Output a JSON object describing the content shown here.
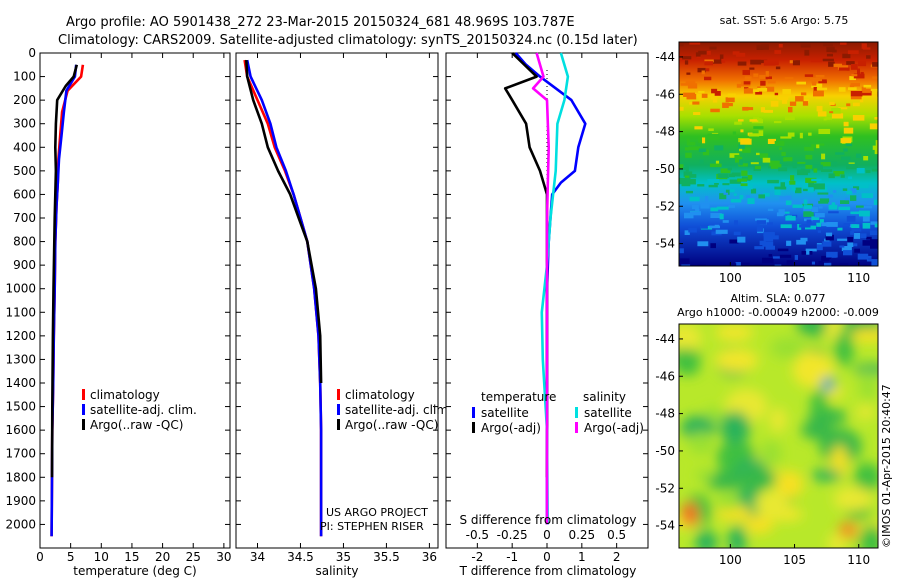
{
  "header": {
    "line1": "Argo profile: AO 5901438_272 23-Mar-2015 20150324_681 48.969S 103.787E",
    "line2": "Climatology: CARS2009. Satellite-adjusted climatology: synTS_20150324.nc (0.15d later)"
  },
  "depth_ticks": [
    "0",
    "100",
    "200",
    "300",
    "400",
    "500",
    "600",
    "700",
    "800",
    "900",
    "1000",
    "1100",
    "1200",
    "1300",
    "1400",
    "1500",
    "1600",
    "1700",
    "1800",
    "1900",
    "2000"
  ],
  "credits": {
    "project": "US ARGO PROJECT",
    "pi": "PI: STEPHEN RISER",
    "imos": "©IMOS 01-Apr-2015 20:40:47"
  },
  "colors": {
    "climatology": "#ff0000",
    "satellite": "#0000ff",
    "argo": "#000000",
    "sal_satellite": "#00e0e0",
    "sal_argo": "#ff00ff"
  },
  "chart_data": [
    {
      "type": "line",
      "xlabel": "temperature (deg C)",
      "ylabel": "",
      "xlim": [
        0,
        31
      ],
      "ylim": [
        2100,
        0
      ],
      "xticks": [
        "0",
        "5",
        "10",
        "15",
        "20",
        "25",
        "30"
      ],
      "legend": [
        {
          "label": "climatology",
          "color": "#ff0000"
        },
        {
          "label": "satellite-adj. clim.",
          "color": "#0000ff"
        },
        {
          "label": "Argo(..raw -QC)",
          "color": "#000000"
        }
      ],
      "series": [
        {
          "name": "climatology",
          "color": "#ff0000",
          "x": [
            7.0,
            6.7,
            4.5,
            3.6,
            3.3,
            3.0,
            2.9,
            2.7,
            2.5,
            2.4,
            2.25,
            2.15,
            2.0,
            1.95,
            1.9
          ],
          "y": [
            50,
            100,
            160,
            250,
            350,
            450,
            550,
            650,
            800,
            1000,
            1200,
            1400,
            1600,
            1800,
            2050
          ]
        },
        {
          "name": "satellite-adj. clim.",
          "color": "#0000ff",
          "x": [
            5.9,
            5.7,
            4.3,
            3.9,
            3.5,
            3.1,
            2.9,
            2.7,
            2.5,
            2.4,
            2.25,
            2.15,
            2.0,
            1.95,
            1.9
          ],
          "y": [
            50,
            100,
            160,
            250,
            350,
            450,
            550,
            650,
            800,
            1000,
            1200,
            1400,
            1600,
            1800,
            2050
          ]
        },
        {
          "name": "Argo(..raw -QC)",
          "color": "#000000",
          "x": [
            6.0,
            5.5,
            4.2,
            2.8,
            2.6,
            2.5,
            2.6,
            2.5,
            2.4,
            2.3,
            2.2,
            2.1,
            2.0,
            1.95
          ],
          "y": [
            50,
            100,
            140,
            200,
            300,
            400,
            500,
            600,
            700,
            850,
            1000,
            1200,
            1500,
            1800
          ]
        }
      ]
    },
    {
      "type": "line",
      "xlabel": "salinity",
      "ylabel": "",
      "xlim": [
        33.75,
        36.1
      ],
      "ylim": [
        2100,
        0
      ],
      "xticks": [
        "34",
        "34.5",
        "35",
        "35.5",
        "36"
      ],
      "legend": [
        {
          "label": "climatology",
          "color": "#ff0000"
        },
        {
          "label": "satellite-adj. clim.",
          "color": "#0000ff"
        },
        {
          "label": "Argo(..raw -QC)",
          "color": "#000000"
        }
      ],
      "series": [
        {
          "name": "climatology",
          "color": "#ff0000",
          "x": [
            33.85,
            33.88,
            34.0,
            34.12,
            34.2,
            34.32,
            34.42,
            34.5,
            34.58,
            34.66,
            34.71,
            34.73,
            34.74,
            34.74
          ],
          "y": [
            30,
            100,
            200,
            300,
            400,
            500,
            600,
            700,
            800,
            1000,
            1200,
            1400,
            1600,
            2050
          ]
        },
        {
          "name": "satellite-adj. clim.",
          "color": "#0000ff",
          "x": [
            33.88,
            33.92,
            34.05,
            34.15,
            34.22,
            34.33,
            34.42,
            34.5,
            34.58,
            34.66,
            34.71,
            34.73,
            34.74,
            34.74
          ],
          "y": [
            30,
            100,
            200,
            300,
            400,
            500,
            600,
            700,
            800,
            1000,
            1200,
            1400,
            1600,
            2050
          ]
        },
        {
          "name": "Argo(..raw -QC)",
          "color": "#000000",
          "x": [
            33.87,
            33.88,
            33.95,
            34.05,
            34.12,
            34.24,
            34.38,
            34.48,
            34.58,
            34.68,
            34.73,
            34.74
          ],
          "y": [
            30,
            100,
            200,
            300,
            400,
            500,
            600,
            700,
            800,
            1000,
            1200,
            1400
          ]
        }
      ]
    },
    {
      "type": "line",
      "xlabel": "T difference from climatology",
      "xlabel_top": "S difference from climatology",
      "ylabel": "",
      "xlim": [
        -2.9,
        2.9
      ],
      "ylim": [
        2100,
        0
      ],
      "xticks": [
        "-2",
        "-1",
        "0",
        "1",
        "2"
      ],
      "xticks_top": [
        "-0.5",
        "-0.25",
        "0",
        "0.25",
        "0.5"
      ],
      "legend": [
        {
          "group": "temperature",
          "label": "satellite",
          "color": "#0000ff"
        },
        {
          "group": "temperature",
          "label": "Argo(-adj)",
          "color": "#000000"
        },
        {
          "group": "salinity",
          "label": "satellite",
          "color": "#00e0e0"
        },
        {
          "group": "salinity",
          "label": "Argo(-adj)",
          "color": "#ff00ff"
        }
      ],
      "series": [
        {
          "name": "T satellite",
          "color": "#0000ff",
          "x": [
            -0.9,
            -0.6,
            -0.2,
            0.7,
            1.1,
            0.9,
            0.8,
            0.4,
            0.15,
            0.05,
            0.0,
            0.0,
            0.0,
            0.0
          ],
          "y": [
            0,
            50,
            100,
            200,
            300,
            400,
            500,
            550,
            600,
            800,
            1000,
            1200,
            1600,
            2000
          ]
        },
        {
          "name": "T Argo(-adj)",
          "color": "#000000",
          "x": [
            -1.0,
            -0.3,
            -1.2,
            -1.0,
            -0.6,
            -0.5,
            -0.2,
            -0.1,
            0.0,
            0.0,
            0.0,
            0.0
          ],
          "y": [
            0,
            100,
            150,
            200,
            300,
            400,
            500,
            550,
            600,
            800,
            1200,
            1800
          ]
        },
        {
          "name": "S satellite",
          "color": "#00e0e0",
          "x": [
            0.4,
            0.6,
            0.5,
            0.3,
            0.25,
            0.1,
            0.0,
            -0.15,
            -0.12,
            0.0,
            0.02
          ],
          "y": [
            0,
            100,
            200,
            300,
            500,
            700,
            900,
            1100,
            1300,
            1600,
            2000
          ]
        },
        {
          "name": "S Argo(-adj)",
          "color": "#ff00ff",
          "x": [
            -0.3,
            -0.1,
            -0.4,
            0.0,
            0.05,
            0.0,
            0.0,
            0.0,
            0.0
          ],
          "y": [
            0,
            100,
            150,
            200,
            400,
            700,
            1000,
            1500,
            2000
          ]
        }
      ]
    },
    {
      "type": "heatmap",
      "title": "sat. SST: 5.6 Argo: 5.75",
      "xlim": [
        96,
        111.5
      ],
      "ylim": [
        -55.2,
        -43.2
      ],
      "xticks": [
        "100",
        "105",
        "110"
      ],
      "yticks": [
        "-44",
        "-46",
        "-48",
        "-50",
        "-52",
        "-54"
      ]
    },
    {
      "type": "heatmap",
      "title": "Altim. SLA: 0.077",
      "subtitle": "Argo h1000: -0.00049 h2000: -0.009",
      "xlim": [
        96,
        111.5
      ],
      "ylim": [
        -55.2,
        -43.2
      ],
      "xticks": [
        "100",
        "105",
        "110"
      ],
      "yticks": [
        "-44",
        "-46",
        "-48",
        "-50",
        "-52",
        "-54"
      ]
    }
  ]
}
